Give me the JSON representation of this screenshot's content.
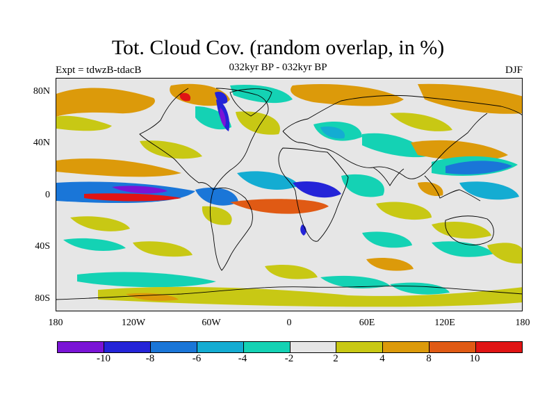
{
  "title": "Tot. Cloud Cov. (random overlap, in %)",
  "subtitle": "032kyr BP - 032kyr BP",
  "experiment": "Expt = tdwzB-tdacB",
  "season": "DJF",
  "y_ticks": [
    "80N",
    "40N",
    "0",
    "40S",
    "80S"
  ],
  "x_ticks": [
    "180",
    "120W",
    "60W",
    "0",
    "60E",
    "120E",
    "180"
  ],
  "colorbar": {
    "colors": [
      "#7a14d6",
      "#2424d8",
      "#1a76d8",
      "#14acd2",
      "#14d2b4",
      "#e6e6e6",
      "#c8c814",
      "#dc9a0a",
      "#e05a14",
      "#e01414"
    ],
    "labels": [
      "-10",
      "-8",
      "-6",
      "-4",
      "-2",
      "2",
      "4",
      "8",
      "10"
    ]
  }
}
